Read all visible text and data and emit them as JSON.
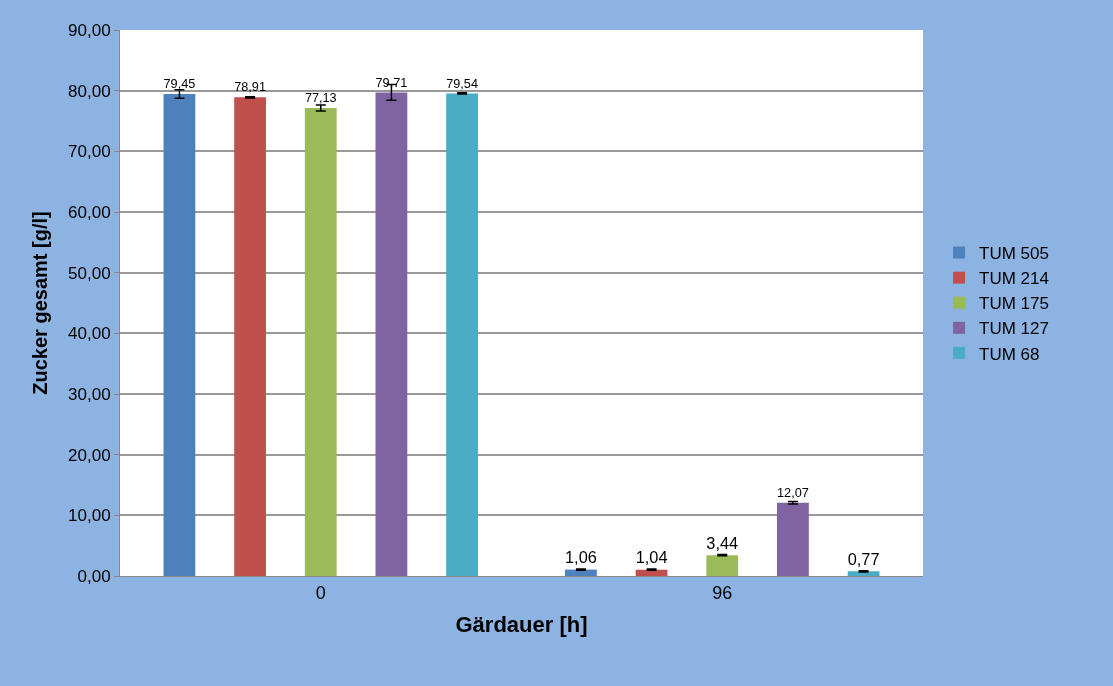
{
  "chart_data": {
    "type": "bar",
    "xlabel": "Gärdauer [h]",
    "ylabel": "Zucker gesamt [g/l]",
    "categories": [
      "0",
      "96"
    ],
    "series": [
      {
        "name": "TUM 505",
        "color": "#4f81bd",
        "values": [
          79.45,
          1.06
        ],
        "errors": [
          0.7,
          0.1
        ],
        "value_labels": [
          "79,45",
          "1,06"
        ]
      },
      {
        "name": "TUM 214",
        "color": "#c0504d",
        "values": [
          78.91,
          1.04
        ],
        "errors": [
          0.1,
          0.1
        ],
        "value_labels": [
          "78,91",
          "1,04"
        ]
      },
      {
        "name": "TUM 175",
        "color": "#9bbb59",
        "values": [
          77.13,
          3.44
        ],
        "errors": [
          0.5,
          0.1
        ],
        "value_labels": [
          "77,13",
          "3,44"
        ]
      },
      {
        "name": "TUM 127",
        "color": "#8064a2",
        "values": [
          79.71,
          12.07
        ],
        "errors": [
          1.3,
          0.2
        ],
        "value_labels": [
          "79,71",
          "12,07"
        ]
      },
      {
        "name": "TUM 68",
        "color": "#4bacc6",
        "values": [
          79.54,
          0.77
        ],
        "errors": [
          0.1,
          0.1
        ],
        "value_labels": [
          "79,54",
          "0,77"
        ]
      }
    ],
    "ylim": [
      0,
      90
    ],
    "yticks": [
      {
        "value": 0,
        "label": "0,00"
      },
      {
        "value": 10,
        "label": "10,00"
      },
      {
        "value": 20,
        "label": "20,00"
      },
      {
        "value": 30,
        "label": "30,00"
      },
      {
        "value": 40,
        "label": "40,00"
      },
      {
        "value": 50,
        "label": "50,00"
      },
      {
        "value": 60,
        "label": "60,00"
      },
      {
        "value": 70,
        "label": "70,00"
      },
      {
        "value": 80,
        "label": "80,00"
      },
      {
        "value": 90,
        "label": "90,00"
      }
    ],
    "grid": "y",
    "legend": "right"
  }
}
